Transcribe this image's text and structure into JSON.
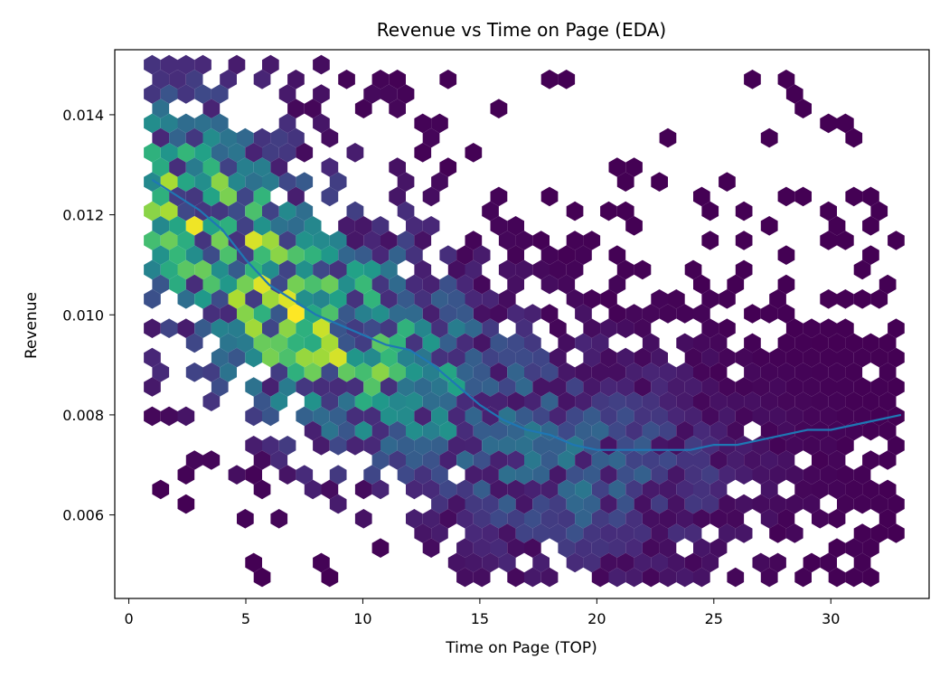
{
  "chart_data": {
    "type": "hexbin",
    "title": "Revenue vs Time on Page (EDA)",
    "xlabel": "Time on Page (TOP)",
    "ylabel": "Revenue",
    "xlim": [
      -0.6,
      34.2
    ],
    "ylim": [
      0.00433,
      0.0153
    ],
    "x_ticks": [
      0,
      5,
      10,
      15,
      20,
      25,
      30
    ],
    "y_ticks": [
      0.006,
      0.008,
      0.01,
      0.012,
      0.014
    ],
    "x_tick_labels": [
      "0",
      "5",
      "10",
      "15",
      "20",
      "25",
      "30"
    ],
    "y_tick_labels": [
      "0.006",
      "0.008",
      "0.010",
      "0.012",
      "0.014"
    ],
    "colormap": "viridis",
    "grid": false,
    "hexbin": {
      "x_range": [
        1,
        33
      ],
      "y_range": [
        0.0047,
        0.015
      ],
      "density_centers": [
        {
          "x": 2.5,
          "y": 0.0125,
          "weight": 1.0
        },
        {
          "x": 6.5,
          "y": 0.0098,
          "weight": 0.75
        },
        {
          "x": 10.5,
          "y": 0.0085,
          "weight": 0.6
        },
        {
          "x": 19.5,
          "y": 0.0066,
          "weight": 0.45
        }
      ]
    },
    "trend_line": {
      "color": "#1f77b4",
      "x": [
        1,
        2,
        3,
        4,
        5,
        6,
        7,
        8,
        9,
        10,
        11,
        12,
        13,
        14,
        15,
        16,
        17,
        18,
        19,
        20,
        21,
        22,
        23,
        24,
        25,
        26,
        27,
        28,
        29,
        30,
        31,
        32,
        33
      ],
      "y": [
        0.0127,
        0.0124,
        0.0121,
        0.0117,
        0.0111,
        0.0106,
        0.0103,
        0.01,
        0.0098,
        0.0096,
        0.0094,
        0.0093,
        0.009,
        0.0086,
        0.0082,
        0.0079,
        0.0077,
        0.0076,
        0.0074,
        0.0073,
        0.0073,
        0.0073,
        0.0073,
        0.0073,
        0.0074,
        0.0074,
        0.0075,
        0.0076,
        0.0077,
        0.0077,
        0.0078,
        0.0079,
        0.008
      ]
    }
  }
}
